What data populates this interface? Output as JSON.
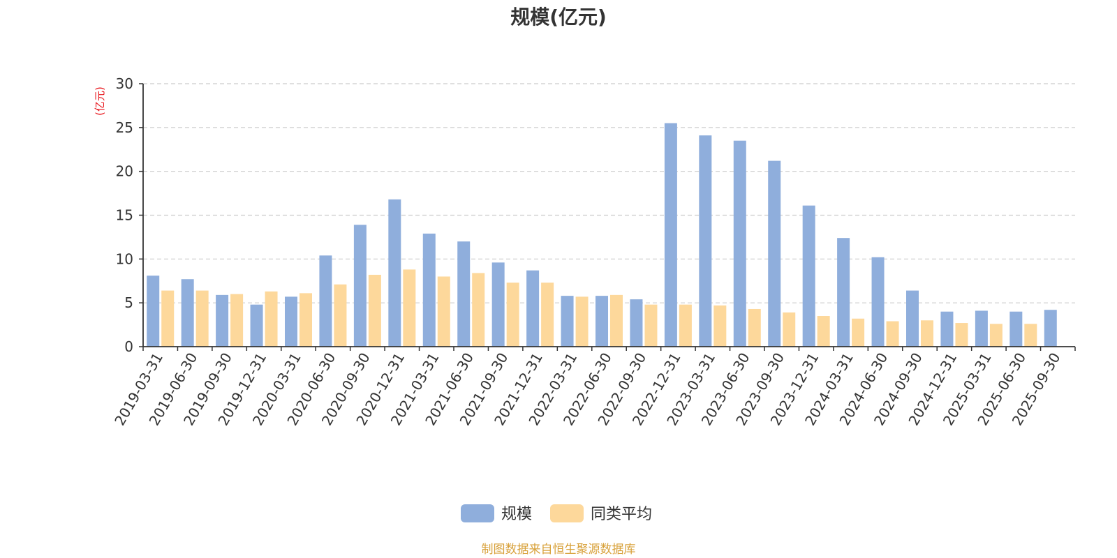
{
  "chart_data": {
    "type": "bar",
    "title": "规模(亿元)",
    "ylabel": "(亿元)",
    "ylim": [
      0,
      30
    ],
    "yticks": [
      0,
      5,
      10,
      15,
      20,
      25,
      30
    ],
    "grid": "horizontal-dashed",
    "legend_position": "bottom",
    "categories": [
      "2019-03-31",
      "2019-06-30",
      "2019-09-30",
      "2019-12-31",
      "2020-03-31",
      "2020-06-30",
      "2020-09-30",
      "2020-12-31",
      "2021-03-31",
      "2021-06-30",
      "2021-09-30",
      "2021-12-31",
      "2022-03-31",
      "2022-06-30",
      "2022-09-30",
      "2022-12-31",
      "2023-03-31",
      "2023-06-30",
      "2023-09-30",
      "2023-12-31",
      "2024-03-31",
      "2024-06-30",
      "2024-09-30",
      "2024-12-31",
      "2025-03-31",
      "2025-06-30",
      "2025-09-30"
    ],
    "series": [
      {
        "name": "规模",
        "color": "#8faedc",
        "values": [
          8.1,
          7.7,
          5.9,
          4.8,
          5.7,
          10.4,
          13.9,
          16.8,
          12.9,
          12.0,
          9.6,
          8.7,
          5.8,
          5.8,
          5.4,
          25.5,
          24.1,
          23.5,
          21.2,
          16.1,
          12.4,
          10.2,
          6.4,
          4.0,
          4.1,
          4.0,
          4.2
        ]
      },
      {
        "name": "同类平均",
        "color": "#fdd89b",
        "values": [
          6.4,
          6.4,
          6.0,
          6.3,
          6.1,
          7.1,
          8.2,
          8.8,
          8.0,
          8.4,
          7.3,
          7.3,
          5.7,
          5.9,
          4.8,
          4.8,
          4.7,
          4.3,
          3.9,
          3.5,
          3.2,
          2.9,
          3.0,
          2.7,
          2.6,
          2.6,
          null
        ]
      }
    ]
  },
  "source_text": "制图数据来自恒生聚源数据库",
  "colors": {
    "axis": "#333333",
    "grid": "#cccccc",
    "unit": "#e8161c",
    "source": "#d8a13a"
  }
}
